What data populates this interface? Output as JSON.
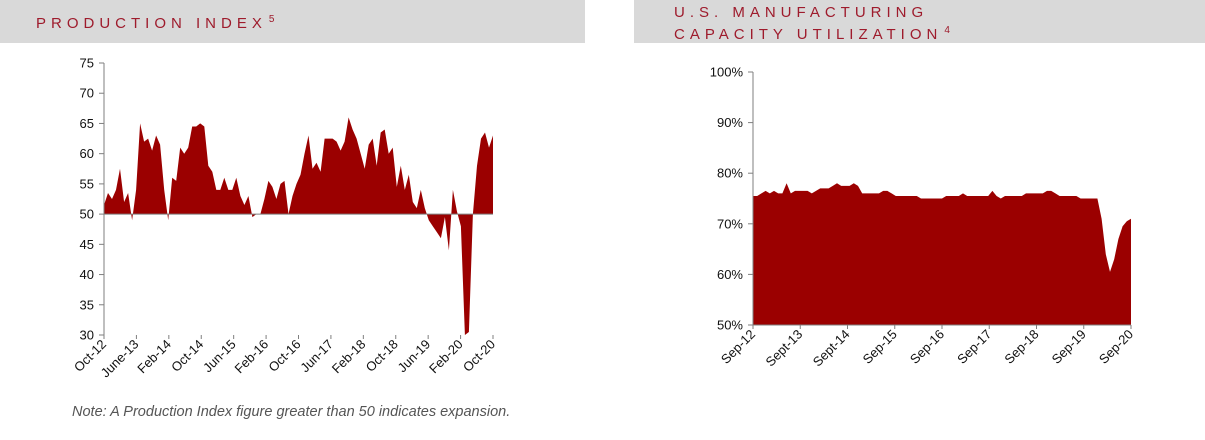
{
  "colors": {
    "fill": "#9b0000",
    "header_bg": "#d9d9d9",
    "header_text": "#9e1b2c"
  },
  "left_panel": {
    "title": "PRODUCTION INDEX",
    "footnote": "5"
  },
  "right_panel": {
    "title_line1": "U.S. MANUFACTURING",
    "title_line2": "CAPACITY UTILIZATION",
    "footnote": "4"
  },
  "note": "Note: A Production Index figure greater than 50 indicates expansion.",
  "chart_data": [
    {
      "type": "area",
      "title": "PRODUCTION INDEX",
      "baseline": 50,
      "ylim": [
        30,
        75
      ],
      "yticks": [
        "30",
        "35",
        "40",
        "45",
        "50",
        "55",
        "60",
        "65",
        "70",
        "75"
      ],
      "xtick_labels": [
        "Oct-12",
        "June-13",
        "Feb-14",
        "Oct-14",
        "Jun-15",
        "Feb-16",
        "Oct-16",
        "Jun-17",
        "Feb-18",
        "Oct-18",
        "Jun-19",
        "Feb-20",
        "Oct-20"
      ],
      "values": [
        51.5,
        53.5,
        52.5,
        54,
        57.5,
        52,
        53.5,
        49,
        54,
        65,
        62,
        62.5,
        60.5,
        63,
        61.5,
        54,
        49,
        56,
        55.5,
        61,
        60,
        61,
        64.5,
        64.5,
        65,
        64.5,
        58,
        57,
        54,
        54,
        56,
        54,
        54,
        56,
        53,
        51.5,
        53,
        49.5,
        50,
        50,
        52.5,
        55.5,
        54.5,
        52.5,
        55,
        55.5,
        50,
        53,
        55,
        56.5,
        60,
        63,
        57.5,
        58.5,
        57,
        62.5,
        62.5,
        62.5,
        62,
        60.5,
        62,
        66,
        64,
        62.5,
        60,
        57.5,
        61.5,
        62.5,
        58,
        63.5,
        64,
        60,
        61,
        54.5,
        58,
        54,
        56.5,
        52,
        51,
        54,
        51,
        49,
        48,
        47,
        46,
        49.5,
        44,
        54,
        50.5,
        48,
        30,
        30.5,
        50,
        58,
        62.5,
        63.5,
        61,
        63
      ]
    },
    {
      "type": "area",
      "title": "U.S. MANUFACTURING CAPACITY UTILIZATION",
      "ylim": [
        50,
        100
      ],
      "yticks": [
        "50%",
        "60%",
        "70%",
        "80%",
        "90%",
        "100%"
      ],
      "xtick_labels": [
        "Sep-12",
        "Sept-13",
        "Sept-14",
        "Sep-15",
        "Sep-16",
        "Sep-17",
        "Sep-18",
        "Sep-19",
        "Sep-20"
      ],
      "values": [
        75.5,
        75.5,
        76,
        76.5,
        76,
        76.5,
        76,
        76,
        78,
        76,
        76.5,
        76.5,
        76.5,
        76.5,
        76,
        76.5,
        77,
        77,
        77,
        77.5,
        78,
        77.5,
        77.5,
        77.5,
        78,
        77.5,
        76,
        76,
        76,
        76,
        76,
        76.5,
        76.5,
        76,
        75.5,
        75.5,
        75.5,
        75.5,
        75.5,
        75.5,
        75,
        75,
        75,
        75,
        75,
        75,
        75.5,
        75.5,
        75.5,
        75.5,
        76,
        75.5,
        75.5,
        75.5,
        75.5,
        75.5,
        75.5,
        76.5,
        75.5,
        75,
        75.5,
        75.5,
        75.5,
        75.5,
        75.5,
        76,
        76,
        76,
        76,
        76,
        76.5,
        76.5,
        76,
        75.5,
        75.5,
        75.5,
        75.5,
        75.5,
        75,
        75,
        75,
        75,
        75,
        71,
        64,
        60.5,
        63,
        67,
        69.5,
        70.5,
        71
      ]
    }
  ]
}
